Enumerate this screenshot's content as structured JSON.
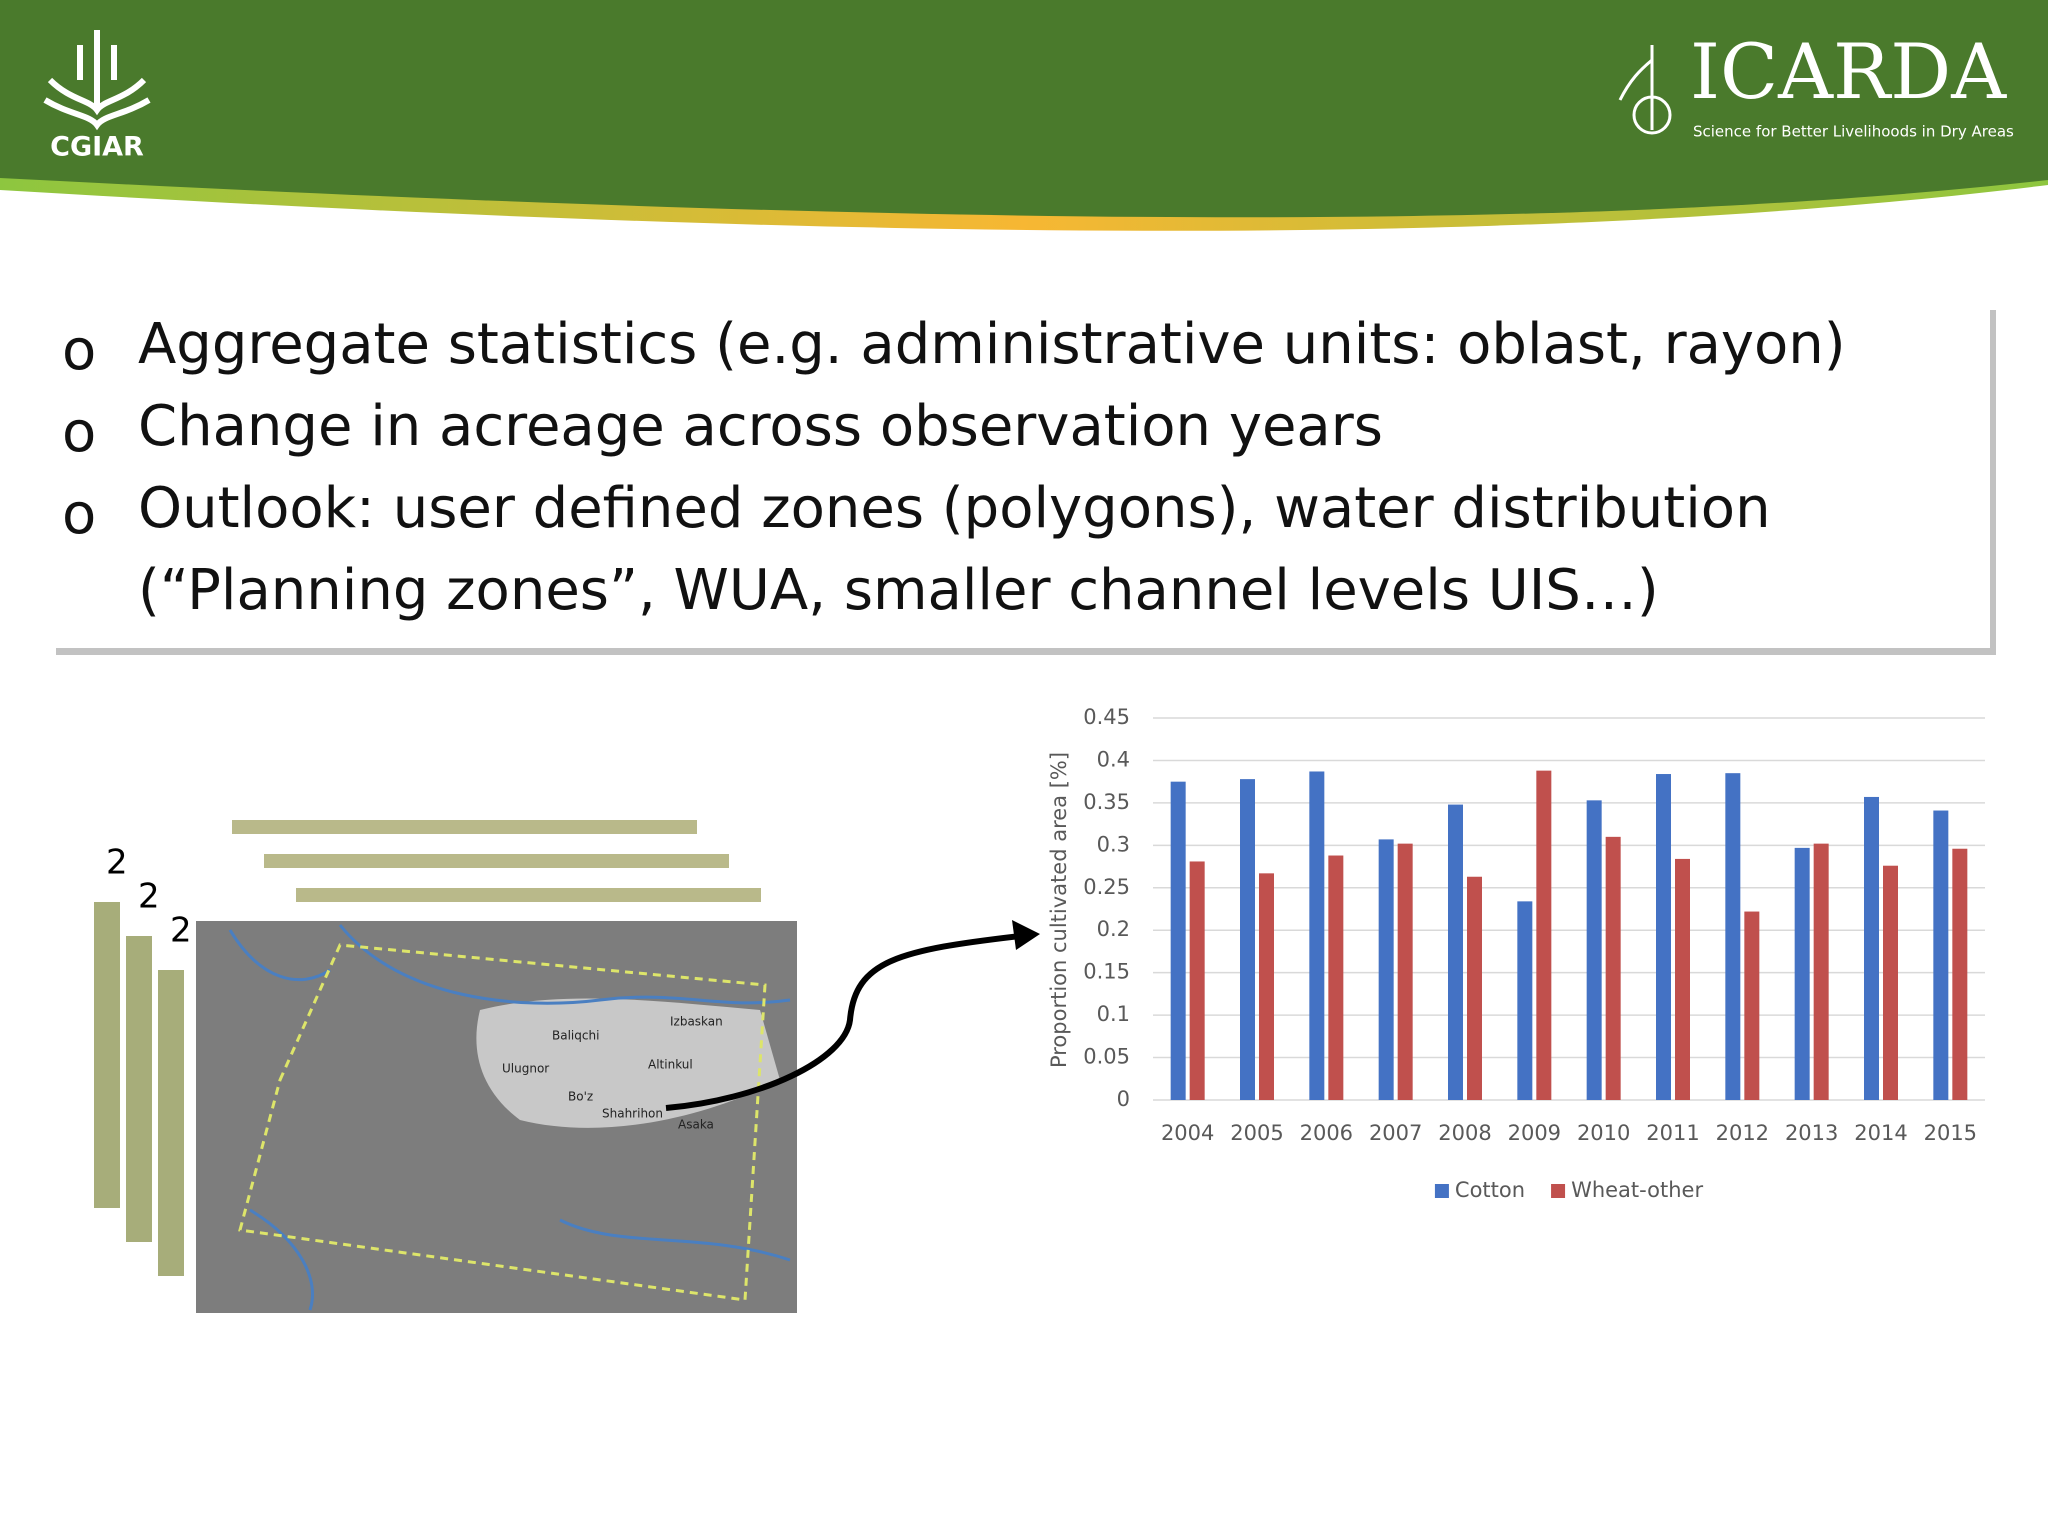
{
  "header": {
    "left_logo": "CGIAR",
    "right_logo": "ICARDA",
    "right_tagline": "Science for Better Livelihoods in Dry Areas"
  },
  "bullets": [
    {
      "marker": "o",
      "lines": [
        "Aggregate statistics (e.g. administrative units: oblast, rayon)"
      ]
    },
    {
      "marker": "o",
      "lines": [
        "Change in acreage across observation years"
      ]
    },
    {
      "marker": "o",
      "lines": [
        "Outlook: user defined zones (polygons), water distribution",
        "(“Planning zones”, WUA, smaller channel levels UIS…)"
      ]
    }
  ],
  "image_stack_labels": [
    "2",
    "2",
    "2"
  ],
  "map_labels": [
    "Izbaskan",
    "Baliqchi",
    "Ulugnor",
    "Altinkul",
    "Bo'z",
    "Shahrihon",
    "Asaka"
  ],
  "chart_data": {
    "type": "bar",
    "ylabel": "Proportion cultivated area [%]",
    "categories": [
      "2004",
      "2005",
      "2006",
      "2007",
      "2008",
      "2009",
      "2010",
      "2011",
      "2012",
      "2013",
      "2014",
      "2015"
    ],
    "series": [
      {
        "name": "Cotton",
        "color": "#4472c4",
        "values": [
          0.375,
          0.378,
          0.387,
          0.307,
          0.348,
          0.234,
          0.353,
          0.384,
          0.385,
          0.297,
          0.357,
          0.341
        ]
      },
      {
        "name": "Wheat-other",
        "color": "#c0504d",
        "values": [
          0.281,
          0.267,
          0.288,
          0.302,
          0.263,
          0.388,
          0.31,
          0.284,
          0.222,
          0.302,
          0.276,
          0.296
        ]
      }
    ],
    "ylim": [
      0,
      0.45
    ],
    "yticks": [
      0,
      0.05,
      0.1,
      0.15,
      0.2,
      0.25,
      0.3,
      0.35,
      0.4,
      0.45
    ],
    "grid": true,
    "legend": "bottom"
  }
}
